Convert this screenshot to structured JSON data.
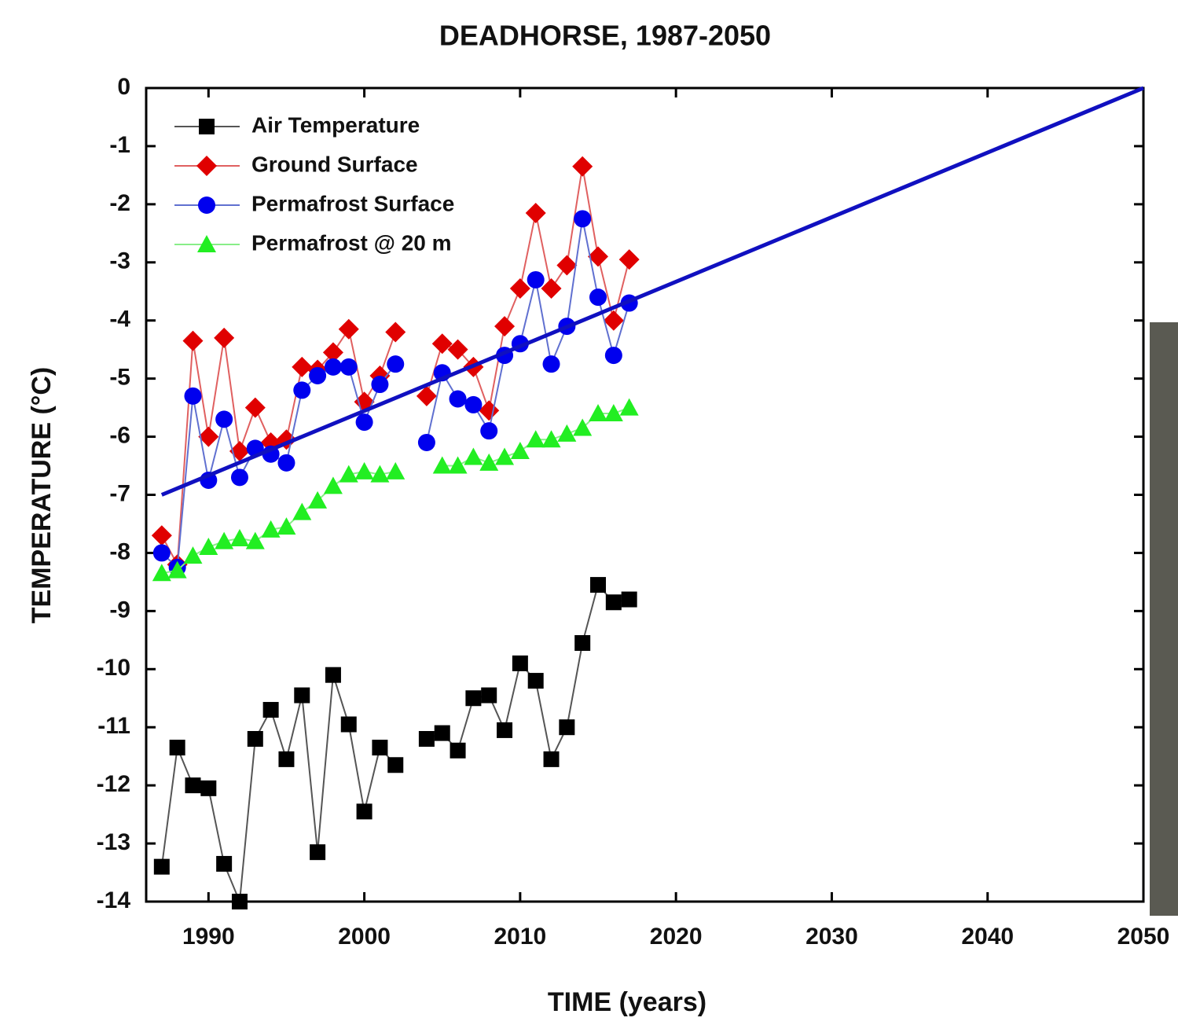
{
  "chart_data": {
    "type": "line",
    "title": "DEADHORSE, 1987-2050",
    "x_label": "TIME (years)",
    "y_label": "TEMPERATURE (°C)",
    "x": [
      1987,
      1988,
      1989,
      1990,
      1991,
      1992,
      1993,
      1994,
      1995,
      1996,
      1997,
      1998,
      1999,
      2000,
      2001,
      2002,
      2003,
      2004,
      2005,
      2006,
      2007,
      2008,
      2009,
      2010,
      2011,
      2012,
      2013,
      2014,
      2015,
      2016,
      2017
    ],
    "series": [
      {
        "name": "Air Temperature",
        "color": "#000000",
        "line_color": "#555555",
        "marker": "square",
        "values": [
          -13.4,
          -11.35,
          -12.0,
          -12.05,
          -13.35,
          -14.0,
          -11.2,
          -10.7,
          -11.55,
          -10.45,
          -13.15,
          -10.1,
          -10.95,
          -12.45,
          -11.35,
          -11.65,
          null,
          -11.2,
          -11.1,
          -11.4,
          -10.5,
          -10.45,
          -11.05,
          -9.9,
          -10.2,
          -11.55,
          -11.0,
          -9.55,
          -8.55,
          -8.85,
          -8.8
        ]
      },
      {
        "name": "Ground Surface",
        "color": "#e00000",
        "line_color": "#e06060",
        "marker": "diamond",
        "values": [
          -7.7,
          -8.2,
          -4.35,
          -6.0,
          -4.3,
          -6.25,
          -5.5,
          -6.1,
          -6.05,
          -4.8,
          -4.85,
          -4.55,
          -4.15,
          -5.4,
          -4.95,
          -4.2,
          null,
          -5.3,
          -4.4,
          -4.5,
          -4.8,
          -5.55,
          -4.1,
          -3.45,
          -2.15,
          -3.45,
          -3.05,
          -1.35,
          -2.9,
          -4.0,
          -2.95
        ]
      },
      {
        "name": "Permafrost Surface",
        "color": "#0000ee",
        "line_color": "#6070d0",
        "marker": "circle",
        "values": [
          -8.0,
          -8.25,
          -5.3,
          -6.75,
          -5.7,
          -6.7,
          -6.2,
          -6.3,
          -6.45,
          -5.2,
          -4.95,
          -4.8,
          -4.8,
          -5.75,
          -5.1,
          -4.75,
          null,
          -6.1,
          -4.9,
          -5.35,
          -5.45,
          -5.9,
          -4.6,
          -4.4,
          -3.3,
          -4.75,
          -4.1,
          -2.25,
          -3.6,
          -4.6,
          -3.7
        ]
      },
      {
        "name": "Permafrost @ 20 m",
        "color": "#22ee22",
        "line_color": "#88ee88",
        "marker": "triangle",
        "values": [
          -8.35,
          -8.3,
          -8.05,
          -7.9,
          -7.8,
          -7.75,
          -7.8,
          -7.6,
          -7.55,
          -7.3,
          -7.1,
          -6.85,
          -6.65,
          -6.6,
          -6.65,
          -6.6,
          null,
          null,
          -6.5,
          -6.5,
          -6.35,
          -6.45,
          -6.35,
          -6.25,
          -6.05,
          -6.05,
          -5.95,
          -5.85,
          -5.6,
          -5.6,
          -5.5
        ]
      }
    ],
    "trend": {
      "color": "#1010c0",
      "x": [
        1987,
        2050
      ],
      "values": [
        -7.0,
        0
      ]
    },
    "xlim": [
      1986,
      2050
    ],
    "xticks": [
      1990,
      2000,
      2010,
      2020,
      2030,
      2040,
      2050
    ],
    "ylim": [
      -14,
      0
    ],
    "yticks": [
      0,
      -1,
      -2,
      -3,
      -4,
      -5,
      -6,
      -7,
      -8,
      -9,
      -10,
      -11,
      -12,
      -13,
      -14
    ],
    "legend": "top-left"
  }
}
